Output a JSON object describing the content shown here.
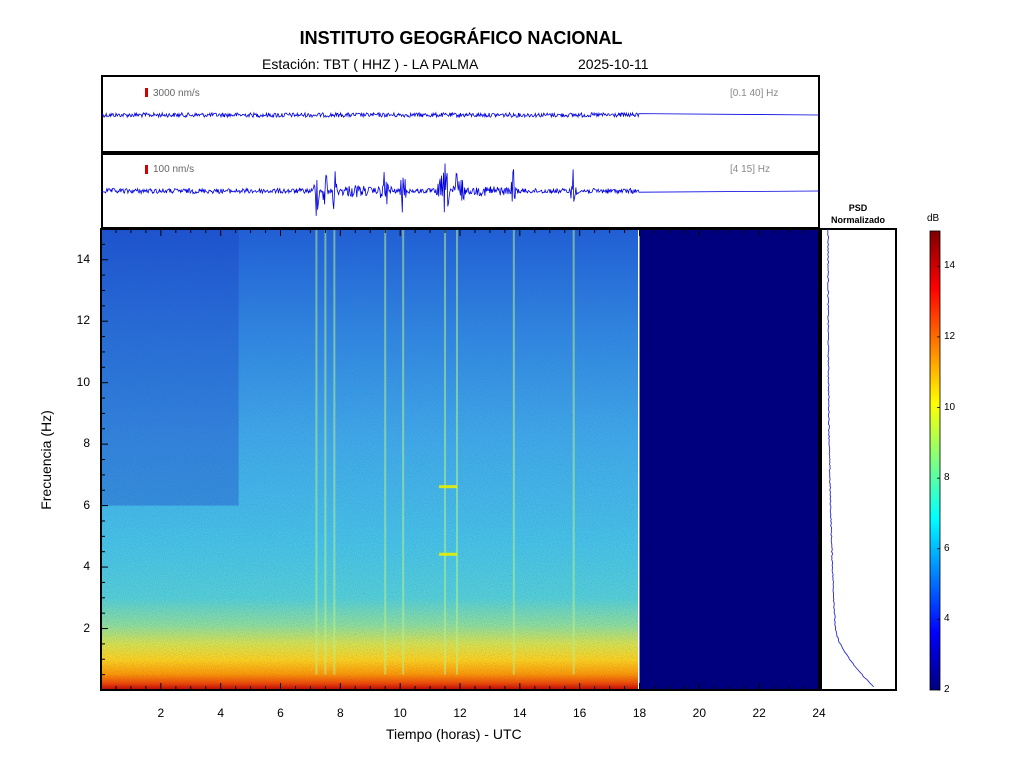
{
  "header": {
    "title": "INSTITUTO GEOGRÁFICO NACIONAL",
    "station": "Estación:  TBT ( HHZ ) - LA PALMA",
    "date": "2025-10-11"
  },
  "trace1": {
    "scale": "3000 nm/s",
    "filter": "[0.1 40]  Hz"
  },
  "trace2": {
    "scale": "100 nm/s",
    "filter": "[4 15]  Hz"
  },
  "psd": {
    "title_line1": "PSD",
    "title_line2": "Normalizado"
  },
  "colorbar": {
    "unit": "dB",
    "ticks": [
      "2",
      "4",
      "6",
      "8",
      "10",
      "12",
      "14"
    ],
    "range": [
      2,
      15
    ],
    "colormap": "jet"
  },
  "chart_data": {
    "type": "heatmap",
    "title": "INSTITUTO GEOGRÁFICO NACIONAL",
    "xlabel": "Tiempo (horas) - UTC",
    "ylabel": "Frecuencia  (Hz)",
    "xlim": [
      0,
      24
    ],
    "ylim": [
      0,
      15
    ],
    "x_ticks": [
      "2",
      "4",
      "6",
      "8",
      "10",
      "12",
      "14",
      "16",
      "18",
      "20",
      "22",
      "24"
    ],
    "y_ticks": [
      "2",
      "4",
      "6",
      "8",
      "10",
      "12",
      "14"
    ],
    "data_end_hour": 18,
    "no_data_color": "#00007f",
    "events_hours": [
      7.2,
      7.5,
      7.8,
      9.5,
      10.1,
      11.5,
      11.9,
      13.8,
      15.8
    ],
    "spectral_lines_hz": [
      4.4,
      6.6
    ]
  }
}
